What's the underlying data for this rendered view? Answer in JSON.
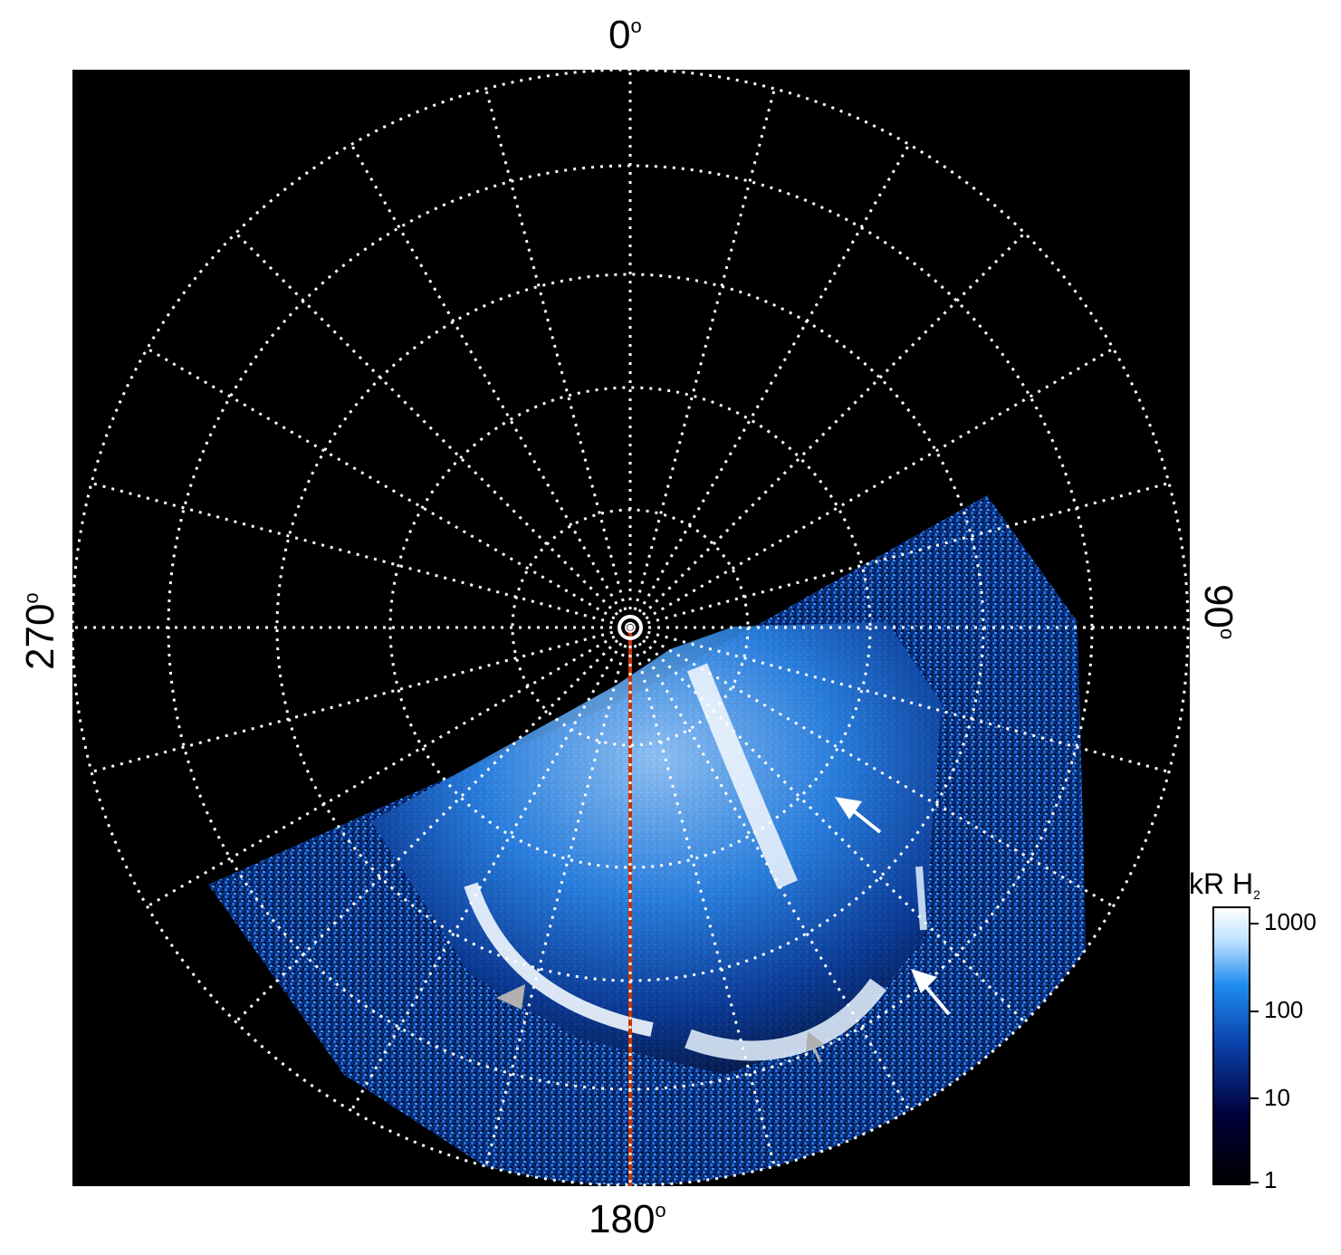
{
  "axis_labels": {
    "top": "0",
    "bottom": "180",
    "left": "270",
    "right": "90",
    "degree_symbol": "o"
  },
  "colorbar": {
    "title_main": "kR H",
    "title_sub": "2",
    "scale": "log",
    "ticks": [
      "1000",
      "100",
      "10",
      "1"
    ],
    "colors": [
      "#000000",
      "#00003a",
      "#0a3fa8",
      "#1e8cf0",
      "#bfe2ff",
      "#ffffff"
    ]
  },
  "overlay": {
    "grid_color": "#ffffff",
    "meridian_color": "#cc3300",
    "arrow_white": "#ffffff",
    "arrow_gray": "#b0b0b0"
  }
}
